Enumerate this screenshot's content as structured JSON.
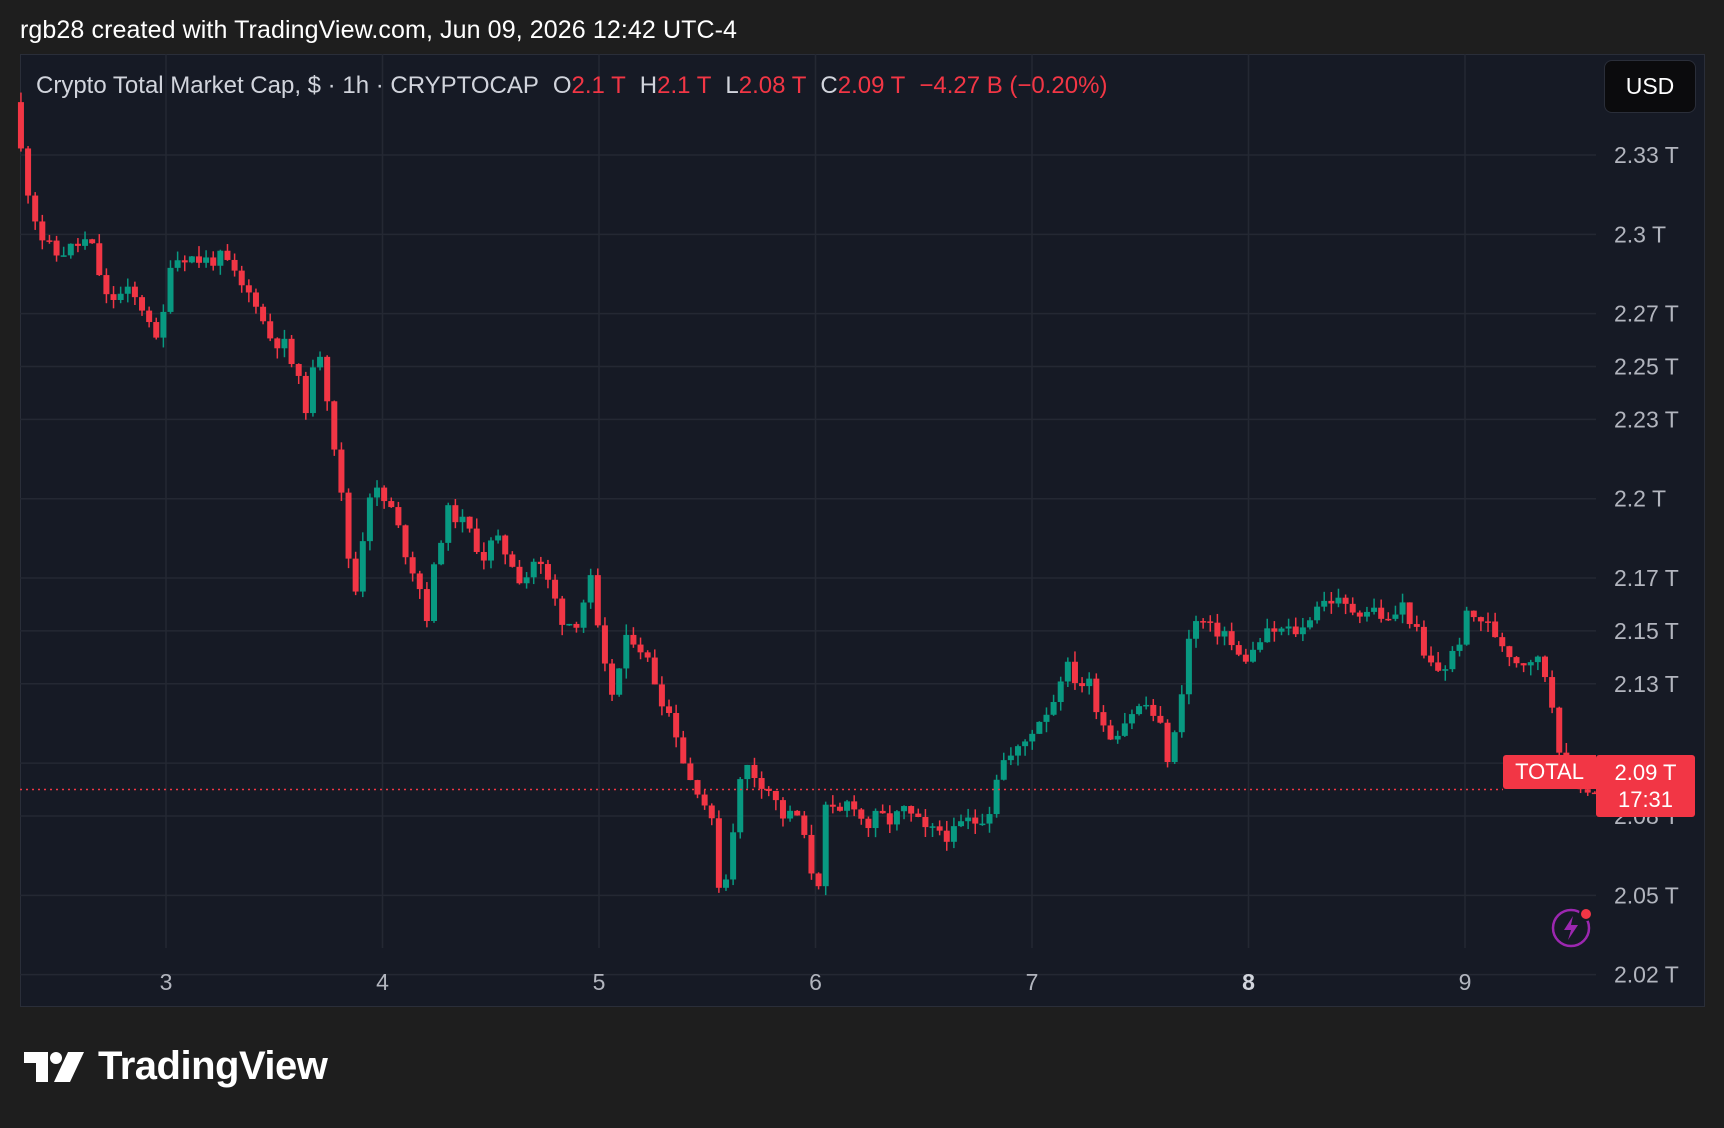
{
  "caption": "rgb28 created with TradingView.com, Jun 09, 2026 12:42 UTC-4",
  "legend": {
    "symbol_name": "Crypto Total Market Cap, $ · 1h · CRYPTOCAP",
    "open_label": "O",
    "open_value": "2.1 T",
    "high_label": "H",
    "high_value": "2.1 T",
    "low_label": "L",
    "low_value": "2.08 T",
    "close_label": "C",
    "close_value": "2.09 T",
    "change": "−4.27 B (−0.20%)"
  },
  "currency_button": "USD",
  "price_tag": {
    "symbol": "TOTAL",
    "price": "2.09 T",
    "countdown": "17:31"
  },
  "logo_text": "TradingView",
  "colors": {
    "up": "#089981",
    "down": "#f23645",
    "background": "#161a25",
    "grid": "#242833"
  },
  "chart_data": {
    "type": "candlestick",
    "title": "Crypto Total Market Cap, $ · 1h · CRYPTOCAP",
    "x_ticks": [
      {
        "day": 3,
        "label": "3",
        "bold": false
      },
      {
        "day": 4,
        "label": "4",
        "bold": false
      },
      {
        "day": 5,
        "label": "5",
        "bold": false
      },
      {
        "day": 6,
        "label": "6",
        "bold": false
      },
      {
        "day": 7,
        "label": "7",
        "bold": false
      },
      {
        "day": 8,
        "label": "8",
        "bold": true
      },
      {
        "day": 9,
        "label": "9",
        "bold": false
      }
    ],
    "y_ticks": [
      {
        "value": 2.33,
        "label": "2.33 T"
      },
      {
        "value": 2.3,
        "label": "2.3 T"
      },
      {
        "value": 2.27,
        "label": "2.27 T"
      },
      {
        "value": 2.25,
        "label": "2.25 T"
      },
      {
        "value": 2.23,
        "label": "2.23 T"
      },
      {
        "value": 2.2,
        "label": "2.2 T"
      },
      {
        "value": 2.17,
        "label": "2.17 T"
      },
      {
        "value": 2.15,
        "label": "2.15 T"
      },
      {
        "value": 2.13,
        "label": "2.13 T"
      },
      {
        "value": 2.1,
        "label": "2.1 T"
      },
      {
        "value": 2.08,
        "label": "2.08 T"
      },
      {
        "value": 2.05,
        "label": "2.05 T"
      },
      {
        "value": 2.02,
        "label": "2.02 T"
      }
    ],
    "y_range": [
      2.02,
      2.36
    ],
    "x_range": [
      2.33,
      9.6
    ],
    "last_price": 2.09,
    "waypoints": [
      [
        2.33,
        2.35
      ],
      [
        2.38,
        2.322
      ],
      [
        2.45,
        2.3
      ],
      [
        2.52,
        2.292
      ],
      [
        2.6,
        2.295
      ],
      [
        2.68,
        2.298
      ],
      [
        2.76,
        2.275
      ],
      [
        2.86,
        2.278
      ],
      [
        2.95,
        2.27
      ],
      [
        3.0,
        2.255
      ],
      [
        3.05,
        2.29
      ],
      [
        3.12,
        2.292
      ],
      [
        3.2,
        2.29
      ],
      [
        3.3,
        2.291
      ],
      [
        3.38,
        2.28
      ],
      [
        3.45,
        2.275
      ],
      [
        3.5,
        2.262
      ],
      [
        3.58,
        2.258
      ],
      [
        3.62,
        2.25
      ],
      [
        3.68,
        2.235
      ],
      [
        3.74,
        2.258
      ],
      [
        3.78,
        2.238
      ],
      [
        3.82,
        2.215
      ],
      [
        3.86,
        2.19
      ],
      [
        3.9,
        2.16
      ],
      [
        3.94,
        2.185
      ],
      [
        3.98,
        2.205
      ],
      [
        4.03,
        2.2
      ],
      [
        4.08,
        2.195
      ],
      [
        4.14,
        2.18
      ],
      [
        4.2,
        2.168
      ],
      [
        4.24,
        2.155
      ],
      [
        4.28,
        2.178
      ],
      [
        4.33,
        2.195
      ],
      [
        4.38,
        2.193
      ],
      [
        4.43,
        2.188
      ],
      [
        4.5,
        2.178
      ],
      [
        4.55,
        2.185
      ],
      [
        4.62,
        2.178
      ],
      [
        4.68,
        2.168
      ],
      [
        4.74,
        2.178
      ],
      [
        4.8,
        2.168
      ],
      [
        4.86,
        2.155
      ],
      [
        4.92,
        2.152
      ],
      [
        5.0,
        2.17
      ],
      [
        5.04,
        2.14
      ],
      [
        5.1,
        2.125
      ],
      [
        5.15,
        2.145
      ],
      [
        5.2,
        2.148
      ],
      [
        5.26,
        2.138
      ],
      [
        5.32,
        2.125
      ],
      [
        5.38,
        2.115
      ],
      [
        5.44,
        2.095
      ],
      [
        5.5,
        2.09
      ],
      [
        5.56,
        2.075
      ],
      [
        5.6,
        2.045
      ],
      [
        5.65,
        2.075
      ],
      [
        5.7,
        2.1
      ],
      [
        5.76,
        2.095
      ],
      [
        5.82,
        2.09
      ],
      [
        5.88,
        2.08
      ],
      [
        5.95,
        2.08
      ],
      [
        6.0,
        2.065
      ],
      [
        6.04,
        2.05
      ],
      [
        6.08,
        2.082
      ],
      [
        6.14,
        2.08
      ],
      [
        6.18,
        2.085
      ],
      [
        6.22,
        2.085
      ],
      [
        6.26,
        2.075
      ],
      [
        6.32,
        2.08
      ],
      [
        6.38,
        2.078
      ],
      [
        6.44,
        2.082
      ],
      [
        6.5,
        2.078
      ],
      [
        6.55,
        2.073
      ],
      [
        6.6,
        2.075
      ],
      [
        6.66,
        2.072
      ],
      [
        6.72,
        2.078
      ],
      [
        6.78,
        2.078
      ],
      [
        6.84,
        2.083
      ],
      [
        6.88,
        2.1
      ],
      [
        6.95,
        2.103
      ],
      [
        7.0,
        2.108
      ],
      [
        7.05,
        2.115
      ],
      [
        7.1,
        2.12
      ],
      [
        7.14,
        2.125
      ],
      [
        7.18,
        2.138
      ],
      [
        7.25,
        2.13
      ],
      [
        7.3,
        2.13
      ],
      [
        7.35,
        2.117
      ],
      [
        7.4,
        2.11
      ],
      [
        7.45,
        2.115
      ],
      [
        7.5,
        2.12
      ],
      [
        7.56,
        2.122
      ],
      [
        7.62,
        2.115
      ],
      [
        7.66,
        2.102
      ],
      [
        7.7,
        2.112
      ],
      [
        7.75,
        2.145
      ],
      [
        7.8,
        2.155
      ],
      [
        7.86,
        2.15
      ],
      [
        7.92,
        2.15
      ],
      [
        7.98,
        2.14
      ],
      [
        8.04,
        2.14
      ],
      [
        8.1,
        2.148
      ],
      [
        8.16,
        2.15
      ],
      [
        8.22,
        2.15
      ],
      [
        8.28,
        2.15
      ],
      [
        8.34,
        2.16
      ],
      [
        8.42,
        2.162
      ],
      [
        8.5,
        2.158
      ],
      [
        8.56,
        2.158
      ],
      [
        8.62,
        2.158
      ],
      [
        8.68,
        2.153
      ],
      [
        8.74,
        2.16
      ],
      [
        8.8,
        2.152
      ],
      [
        8.84,
        2.14
      ],
      [
        8.9,
        2.135
      ],
      [
        8.95,
        2.137
      ],
      [
        9.0,
        2.145
      ],
      [
        9.04,
        2.155
      ],
      [
        9.1,
        2.155
      ],
      [
        9.16,
        2.15
      ],
      [
        9.22,
        2.144
      ],
      [
        9.28,
        2.138
      ],
      [
        9.34,
        2.14
      ],
      [
        9.38,
        2.138
      ],
      [
        9.42,
        2.13
      ],
      [
        9.46,
        2.11
      ],
      [
        9.5,
        2.095
      ],
      [
        9.55,
        2.093
      ],
      [
        9.6,
        2.09
      ]
    ]
  }
}
